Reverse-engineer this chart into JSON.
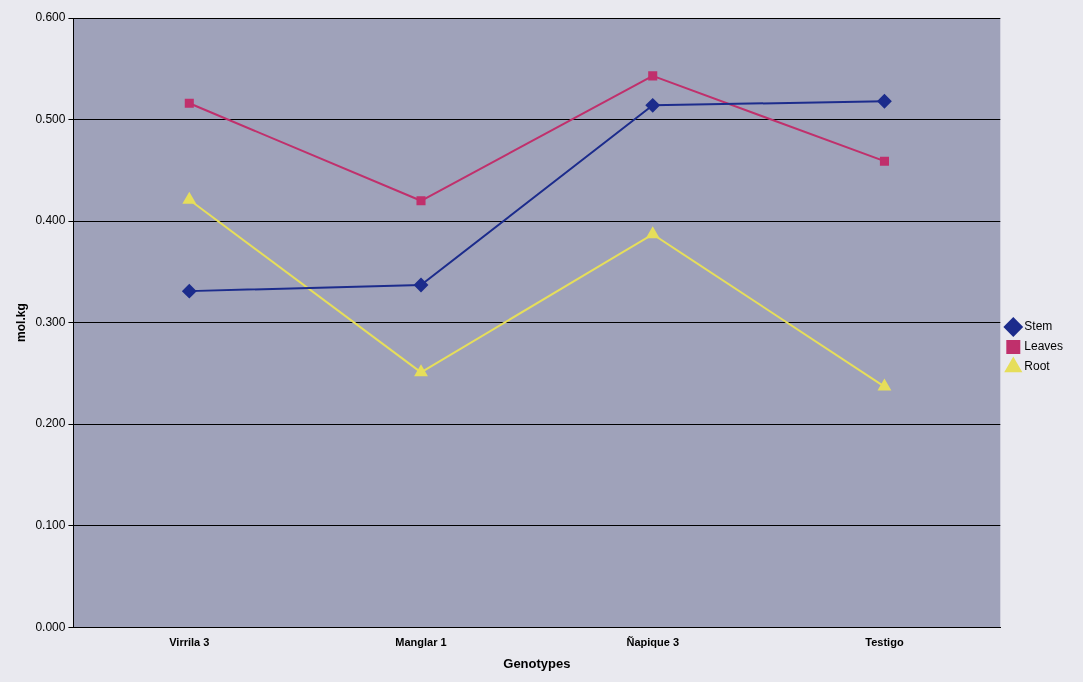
{
  "chart_data": {
    "type": "line",
    "xlabel": "Genotypes",
    "ylabel": "mol.kg",
    "categories": [
      "Virrila 3",
      "Manglar 1",
      "Ñapique 3",
      "Testigo"
    ],
    "series": [
      {
        "name": "Stem",
        "color": "#1c2c8c",
        "marker": "diamond",
        "values": [
          0.331,
          0.337,
          0.514,
          0.518
        ]
      },
      {
        "name": "Leaves",
        "color": "#c0306c",
        "marker": "square",
        "values": [
          0.516,
          0.42,
          0.543,
          0.459
        ]
      },
      {
        "name": "Root",
        "color": "#e6de5a",
        "marker": "triangle",
        "values": [
          0.421,
          0.251,
          0.387,
          0.237
        ]
      }
    ],
    "ylim": [
      0,
      0.6
    ],
    "yticks": [
      {
        "value": 0,
        "label": "0.000"
      },
      {
        "value": 0.1,
        "label": "0.100"
      },
      {
        "value": 0.2,
        "label": "0.200"
      },
      {
        "value": 0.3,
        "label": "0.300"
      },
      {
        "value": 0.4,
        "label": "0.400"
      },
      {
        "value": 0.5,
        "label": "0.500"
      },
      {
        "value": 0.6,
        "label": "0.600"
      }
    ],
    "grid": "y",
    "legend": "right",
    "line_style": "solid"
  }
}
